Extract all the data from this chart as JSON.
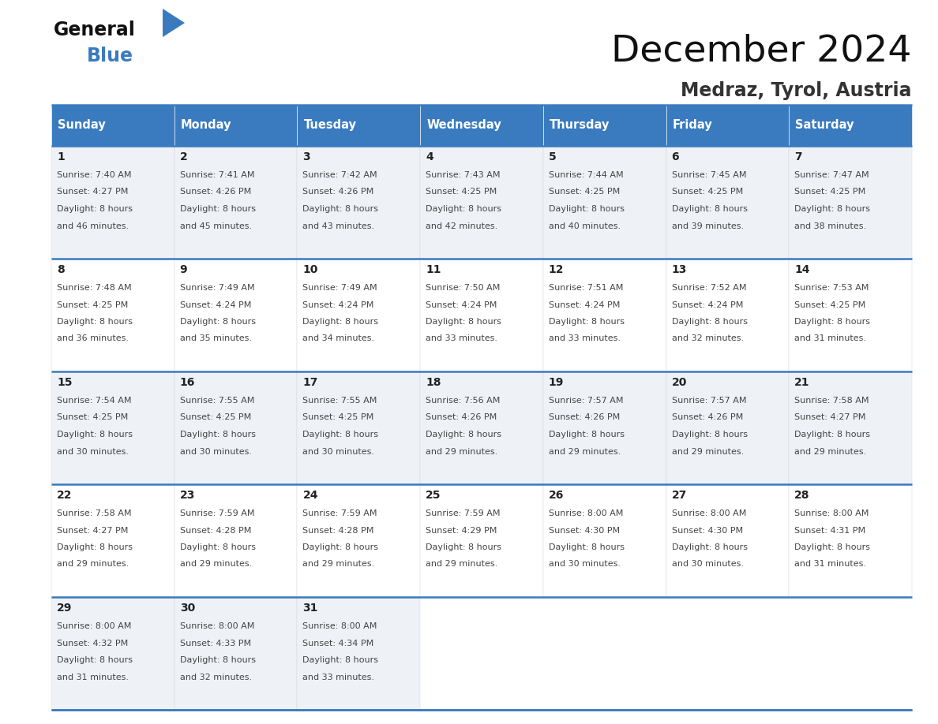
{
  "title": "December 2024",
  "subtitle": "Medraz, Tyrol, Austria",
  "days_of_week": [
    "Sunday",
    "Monday",
    "Tuesday",
    "Wednesday",
    "Thursday",
    "Friday",
    "Saturday"
  ],
  "header_bg": "#3a7bbf",
  "header_text": "#ffffff",
  "row_bg_odd": "#eef2f7",
  "row_bg_even": "#ffffff",
  "divider_color": "#3a7bbf",
  "text_color": "#444444",
  "day_num_color": "#222222",
  "calendar_data": [
    {
      "day": 1,
      "col": 0,
      "row": 0,
      "sunrise": "7:40 AM",
      "sunset": "4:27 PM",
      "daylight": "8 hours and 46 minutes."
    },
    {
      "day": 2,
      "col": 1,
      "row": 0,
      "sunrise": "7:41 AM",
      "sunset": "4:26 PM",
      "daylight": "8 hours and 45 minutes."
    },
    {
      "day": 3,
      "col": 2,
      "row": 0,
      "sunrise": "7:42 AM",
      "sunset": "4:26 PM",
      "daylight": "8 hours and 43 minutes."
    },
    {
      "day": 4,
      "col": 3,
      "row": 0,
      "sunrise": "7:43 AM",
      "sunset": "4:25 PM",
      "daylight": "8 hours and 42 minutes."
    },
    {
      "day": 5,
      "col": 4,
      "row": 0,
      "sunrise": "7:44 AM",
      "sunset": "4:25 PM",
      "daylight": "8 hours and 40 minutes."
    },
    {
      "day": 6,
      "col": 5,
      "row": 0,
      "sunrise": "7:45 AM",
      "sunset": "4:25 PM",
      "daylight": "8 hours and 39 minutes."
    },
    {
      "day": 7,
      "col": 6,
      "row": 0,
      "sunrise": "7:47 AM",
      "sunset": "4:25 PM",
      "daylight": "8 hours and 38 minutes."
    },
    {
      "day": 8,
      "col": 0,
      "row": 1,
      "sunrise": "7:48 AM",
      "sunset": "4:25 PM",
      "daylight": "8 hours and 36 minutes."
    },
    {
      "day": 9,
      "col": 1,
      "row": 1,
      "sunrise": "7:49 AM",
      "sunset": "4:24 PM",
      "daylight": "8 hours and 35 minutes."
    },
    {
      "day": 10,
      "col": 2,
      "row": 1,
      "sunrise": "7:49 AM",
      "sunset": "4:24 PM",
      "daylight": "8 hours and 34 minutes."
    },
    {
      "day": 11,
      "col": 3,
      "row": 1,
      "sunrise": "7:50 AM",
      "sunset": "4:24 PM",
      "daylight": "8 hours and 33 minutes."
    },
    {
      "day": 12,
      "col": 4,
      "row": 1,
      "sunrise": "7:51 AM",
      "sunset": "4:24 PM",
      "daylight": "8 hours and 33 minutes."
    },
    {
      "day": 13,
      "col": 5,
      "row": 1,
      "sunrise": "7:52 AM",
      "sunset": "4:24 PM",
      "daylight": "8 hours and 32 minutes."
    },
    {
      "day": 14,
      "col": 6,
      "row": 1,
      "sunrise": "7:53 AM",
      "sunset": "4:25 PM",
      "daylight": "8 hours and 31 minutes."
    },
    {
      "day": 15,
      "col": 0,
      "row": 2,
      "sunrise": "7:54 AM",
      "sunset": "4:25 PM",
      "daylight": "8 hours and 30 minutes."
    },
    {
      "day": 16,
      "col": 1,
      "row": 2,
      "sunrise": "7:55 AM",
      "sunset": "4:25 PM",
      "daylight": "8 hours and 30 minutes."
    },
    {
      "day": 17,
      "col": 2,
      "row": 2,
      "sunrise": "7:55 AM",
      "sunset": "4:25 PM",
      "daylight": "8 hours and 30 minutes."
    },
    {
      "day": 18,
      "col": 3,
      "row": 2,
      "sunrise": "7:56 AM",
      "sunset": "4:26 PM",
      "daylight": "8 hours and 29 minutes."
    },
    {
      "day": 19,
      "col": 4,
      "row": 2,
      "sunrise": "7:57 AM",
      "sunset": "4:26 PM",
      "daylight": "8 hours and 29 minutes."
    },
    {
      "day": 20,
      "col": 5,
      "row": 2,
      "sunrise": "7:57 AM",
      "sunset": "4:26 PM",
      "daylight": "8 hours and 29 minutes."
    },
    {
      "day": 21,
      "col": 6,
      "row": 2,
      "sunrise": "7:58 AM",
      "sunset": "4:27 PM",
      "daylight": "8 hours and 29 minutes."
    },
    {
      "day": 22,
      "col": 0,
      "row": 3,
      "sunrise": "7:58 AM",
      "sunset": "4:27 PM",
      "daylight": "8 hours and 29 minutes."
    },
    {
      "day": 23,
      "col": 1,
      "row": 3,
      "sunrise": "7:59 AM",
      "sunset": "4:28 PM",
      "daylight": "8 hours and 29 minutes."
    },
    {
      "day": 24,
      "col": 2,
      "row": 3,
      "sunrise": "7:59 AM",
      "sunset": "4:28 PM",
      "daylight": "8 hours and 29 minutes."
    },
    {
      "day": 25,
      "col": 3,
      "row": 3,
      "sunrise": "7:59 AM",
      "sunset": "4:29 PM",
      "daylight": "8 hours and 29 minutes."
    },
    {
      "day": 26,
      "col": 4,
      "row": 3,
      "sunrise": "8:00 AM",
      "sunset": "4:30 PM",
      "daylight": "8 hours and 30 minutes."
    },
    {
      "day": 27,
      "col": 5,
      "row": 3,
      "sunrise": "8:00 AM",
      "sunset": "4:30 PM",
      "daylight": "8 hours and 30 minutes."
    },
    {
      "day": 28,
      "col": 6,
      "row": 3,
      "sunrise": "8:00 AM",
      "sunset": "4:31 PM",
      "daylight": "8 hours and 31 minutes."
    },
    {
      "day": 29,
      "col": 0,
      "row": 4,
      "sunrise": "8:00 AM",
      "sunset": "4:32 PM",
      "daylight": "8 hours and 31 minutes."
    },
    {
      "day": 30,
      "col": 1,
      "row": 4,
      "sunrise": "8:00 AM",
      "sunset": "4:33 PM",
      "daylight": "8 hours and 32 minutes."
    },
    {
      "day": 31,
      "col": 2,
      "row": 4,
      "sunrise": "8:00 AM",
      "sunset": "4:34 PM",
      "daylight": "8 hours and 33 minutes."
    }
  ],
  "num_weeks": 5
}
